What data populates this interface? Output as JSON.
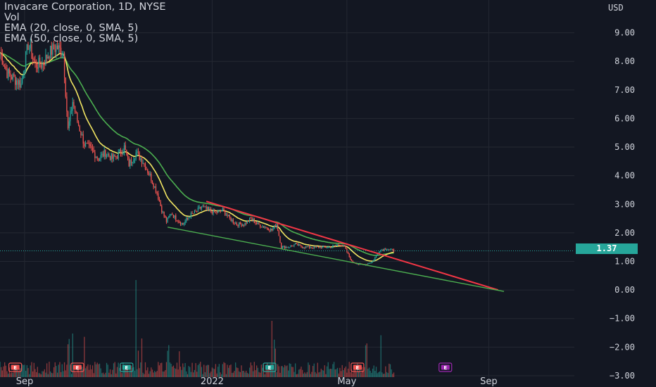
{
  "legend": {
    "title": "Invacare Corporation, 1D, NYSE",
    "vol": "Vol",
    "ema20": "EMA (20, close, 0, SMA, 5)",
    "ema50": "EMA (50, close, 0, SMA, 5)"
  },
  "price_label": "1.37",
  "colors": {
    "background": "#131722",
    "grid": "#242832",
    "up": "#26a69a",
    "down": "#ef5350",
    "ema20": "#f2e663",
    "ema50": "#4caf50",
    "resistance": "#f23645",
    "support": "#4caf50",
    "text": "#d1d4dc",
    "earnings_purple": "#9c27b0"
  },
  "chart_data": {
    "type": "candlestick",
    "currency": "USD",
    "y_ticks": [
      "9.00",
      "8.00",
      "7.00",
      "6.00",
      "5.00",
      "4.00",
      "3.00",
      "2.00",
      "1.00",
      "0.00",
      "−1.00",
      "−2.00",
      "−3.00"
    ],
    "y_values": [
      9,
      8,
      7,
      6,
      5,
      4,
      3,
      2,
      1,
      0,
      -1,
      -2,
      -3
    ],
    "ylim": [
      -3.05,
      9.95
    ],
    "x_ticks": [
      "Sep",
      "2022",
      "May",
      "Sep"
    ],
    "x_tick_days": [
      21,
      181,
      296,
      417
    ],
    "days_visible": [
      0,
      430
    ],
    "last_price": 1.37,
    "earnings_markers": [
      {
        "day": 13,
        "label": "E",
        "color": "#ef5350"
      },
      {
        "day": 66,
        "label": "E",
        "color": "#ef5350"
      },
      {
        "day": 108,
        "label": "E",
        "color": "#26a69a"
      },
      {
        "day": 230,
        "label": "E",
        "color": "#26a69a"
      },
      {
        "day": 305,
        "label": "E",
        "color": "#ef5350"
      },
      {
        "day": 380,
        "label": "E",
        "color": "#9c27b0"
      }
    ],
    "trendlines": [
      {
        "name": "resistance",
        "from": [
          176,
          3.1
        ],
        "to": [
          425,
          0.0
        ]
      },
      {
        "name": "support",
        "from": [
          143,
          2.2
        ],
        "to": [
          430,
          -0.05
        ]
      }
    ],
    "close_path": [
      [
        0,
        8.3
      ],
      [
        6,
        7.6
      ],
      [
        12,
        7.4
      ],
      [
        18,
        7.2
      ],
      [
        24,
        8.6
      ],
      [
        30,
        7.9
      ],
      [
        36,
        7.9
      ],
      [
        42,
        8.3
      ],
      [
        48,
        8.5
      ],
      [
        54,
        8.3
      ],
      [
        58,
        5.6
      ],
      [
        62,
        6.6
      ],
      [
        66,
        5.9
      ],
      [
        72,
        5.1
      ],
      [
        78,
        4.9
      ],
      [
        84,
        4.6
      ],
      [
        90,
        4.8
      ],
      [
        96,
        4.6
      ],
      [
        100,
        4.7
      ],
      [
        106,
        5.0
      ],
      [
        110,
        4.4
      ],
      [
        116,
        4.8
      ],
      [
        122,
        4.5
      ],
      [
        128,
        4.0
      ],
      [
        134,
        3.4
      ],
      [
        138,
        2.8
      ],
      [
        142,
        2.4
      ],
      [
        146,
        2.7
      ],
      [
        150,
        2.5
      ],
      [
        156,
        2.3
      ],
      [
        162,
        2.6
      ],
      [
        166,
        2.7
      ],
      [
        172,
        2.9
      ],
      [
        178,
        2.8
      ],
      [
        184,
        2.7
      ],
      [
        190,
        2.8
      ],
      [
        196,
        2.5
      ],
      [
        202,
        2.3
      ],
      [
        208,
        2.3
      ],
      [
        214,
        2.5
      ],
      [
        220,
        2.3
      ],
      [
        226,
        2.2
      ],
      [
        232,
        2.1
      ],
      [
        236,
        2.3
      ],
      [
        240,
        1.5
      ],
      [
        246,
        1.5
      ],
      [
        252,
        1.6
      ],
      [
        258,
        1.5
      ],
      [
        264,
        1.5
      ],
      [
        270,
        1.5
      ],
      [
        276,
        1.5
      ],
      [
        282,
        1.5
      ],
      [
        290,
        1.6
      ],
      [
        294,
        1.5
      ],
      [
        300,
        1.0
      ],
      [
        306,
        0.9
      ],
      [
        312,
        0.9
      ],
      [
        318,
        1.0
      ],
      [
        324,
        1.4
      ],
      [
        330,
        1.45
      ],
      [
        336,
        1.37
      ]
    ]
  }
}
